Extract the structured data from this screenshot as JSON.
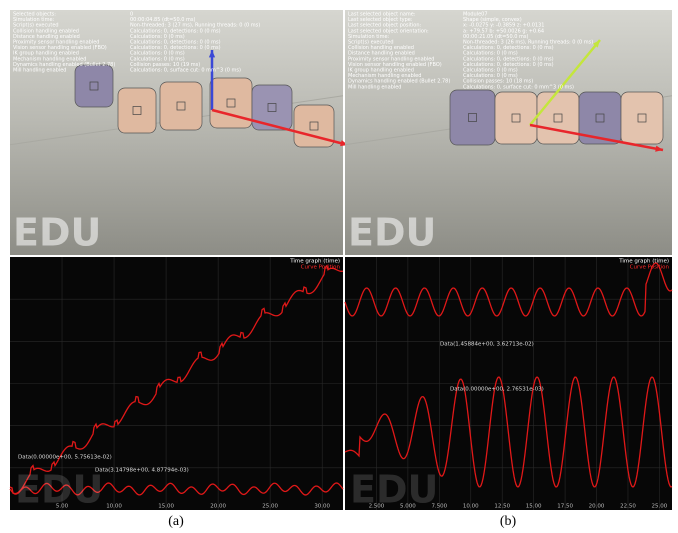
{
  "scene_a": {
    "edu": "EDU",
    "info_labels": [
      "Selected objects:",
      "Simulation time:",
      "Script(s) executed",
      "Collision handling enabled",
      "Distance handling enabled",
      "Proximity sensor handling enabled",
      "Vision sensor handling enabled (FBO)",
      "IK group handling enabled",
      "Mechanism handling enabled",
      "Dynamics handling enabled (Bullet 2.78)",
      "Mill handling enabled"
    ],
    "info_values": [
      "0",
      "00:00:04.85 (dt=50.0 ms)",
      "Non-threaded: 3 (27 ms), Running threads: 0 (0 ms)",
      "Calculations: 0, detections: 0 (0 ms)",
      "Calculations: 0 (0 ms)",
      "Calculations: 0, detections: 0 (0 ms)",
      "Calculations: 0, detections: 0 (0 ms)",
      "Calculations: 0 (0 ms)",
      "Calculations: 0 (0 ms)",
      "Collision passes: 10 (19 ms)",
      "Calculations: 0, surface cut: 0 mm^3 (0 ms)"
    ]
  },
  "scene_b": {
    "edu": "EDU",
    "info_labels": [
      "Last selected object name:",
      "Last selected object type:",
      "Last selected object position:",
      "Last selected object orientation:",
      "Simulation time:",
      "Script(s) executed",
      "Collision handling enabled",
      "Distance handling enabled",
      "Proximity sensor handling enabled",
      "Vision sensor handling enabled (FBO)",
      "IK group handling enabled",
      "Mechanism handling enabled",
      "Dynamics handling enabled (Bullet 2.78)",
      "Mill handling enabled"
    ],
    "info_values": [
      "Module07",
      "Shape (simple, convex)",
      "x: -0.0275  y: -0.3859  z: +0.0131",
      "a: +79.57  b: +50.0026  g: +0.64",
      "00:00:21.05 (dt=50.0 ms)",
      "Non-threaded: 3 (26 ms), Running threads: 0 (0 ms)",
      "Calculations: 0, detections: 0 (0 ms)",
      "Calculations: 0 (0 ms)",
      "Calculations: 0, detections: 0 (0 ms)",
      "Calculations: 0, detections: 0 (0 ms)",
      "Calculations: 0 (0 ms)",
      "Calculations: 0 (0 ms)",
      "Collision passes: 10 (18 ms)",
      "Calculations: 0, surface cut: 0 mm^3 (0 ms)"
    ]
  },
  "graph_a": {
    "title": "Time graph (time)",
    "legend": "Curve Position",
    "edu": "EDU",
    "xticks": [
      "5.00",
      "10.00",
      "15.00",
      "20.00",
      "25.00",
      "30.00"
    ],
    "annotations": [
      "Data(0.00000e+00, 5.75613e-02)",
      "Data(3.14798e+00, 4.87794e-03)"
    ]
  },
  "graph_b": {
    "title": "Time graph (time)",
    "legend": "Curve Position",
    "edu": "EDU",
    "xticks": [
      "2.500",
      "5.000",
      "7.500",
      "10.00",
      "12.50",
      "15.00",
      "17.50",
      "20.00",
      "22.50",
      "25.00"
    ],
    "annotations": [
      "Data(1.45884e+00, 3.62713e-02)",
      "Data(0.00000e+00, 2.76531e-03)"
    ]
  },
  "captions": [
    "(a)",
    "(b)"
  ]
}
